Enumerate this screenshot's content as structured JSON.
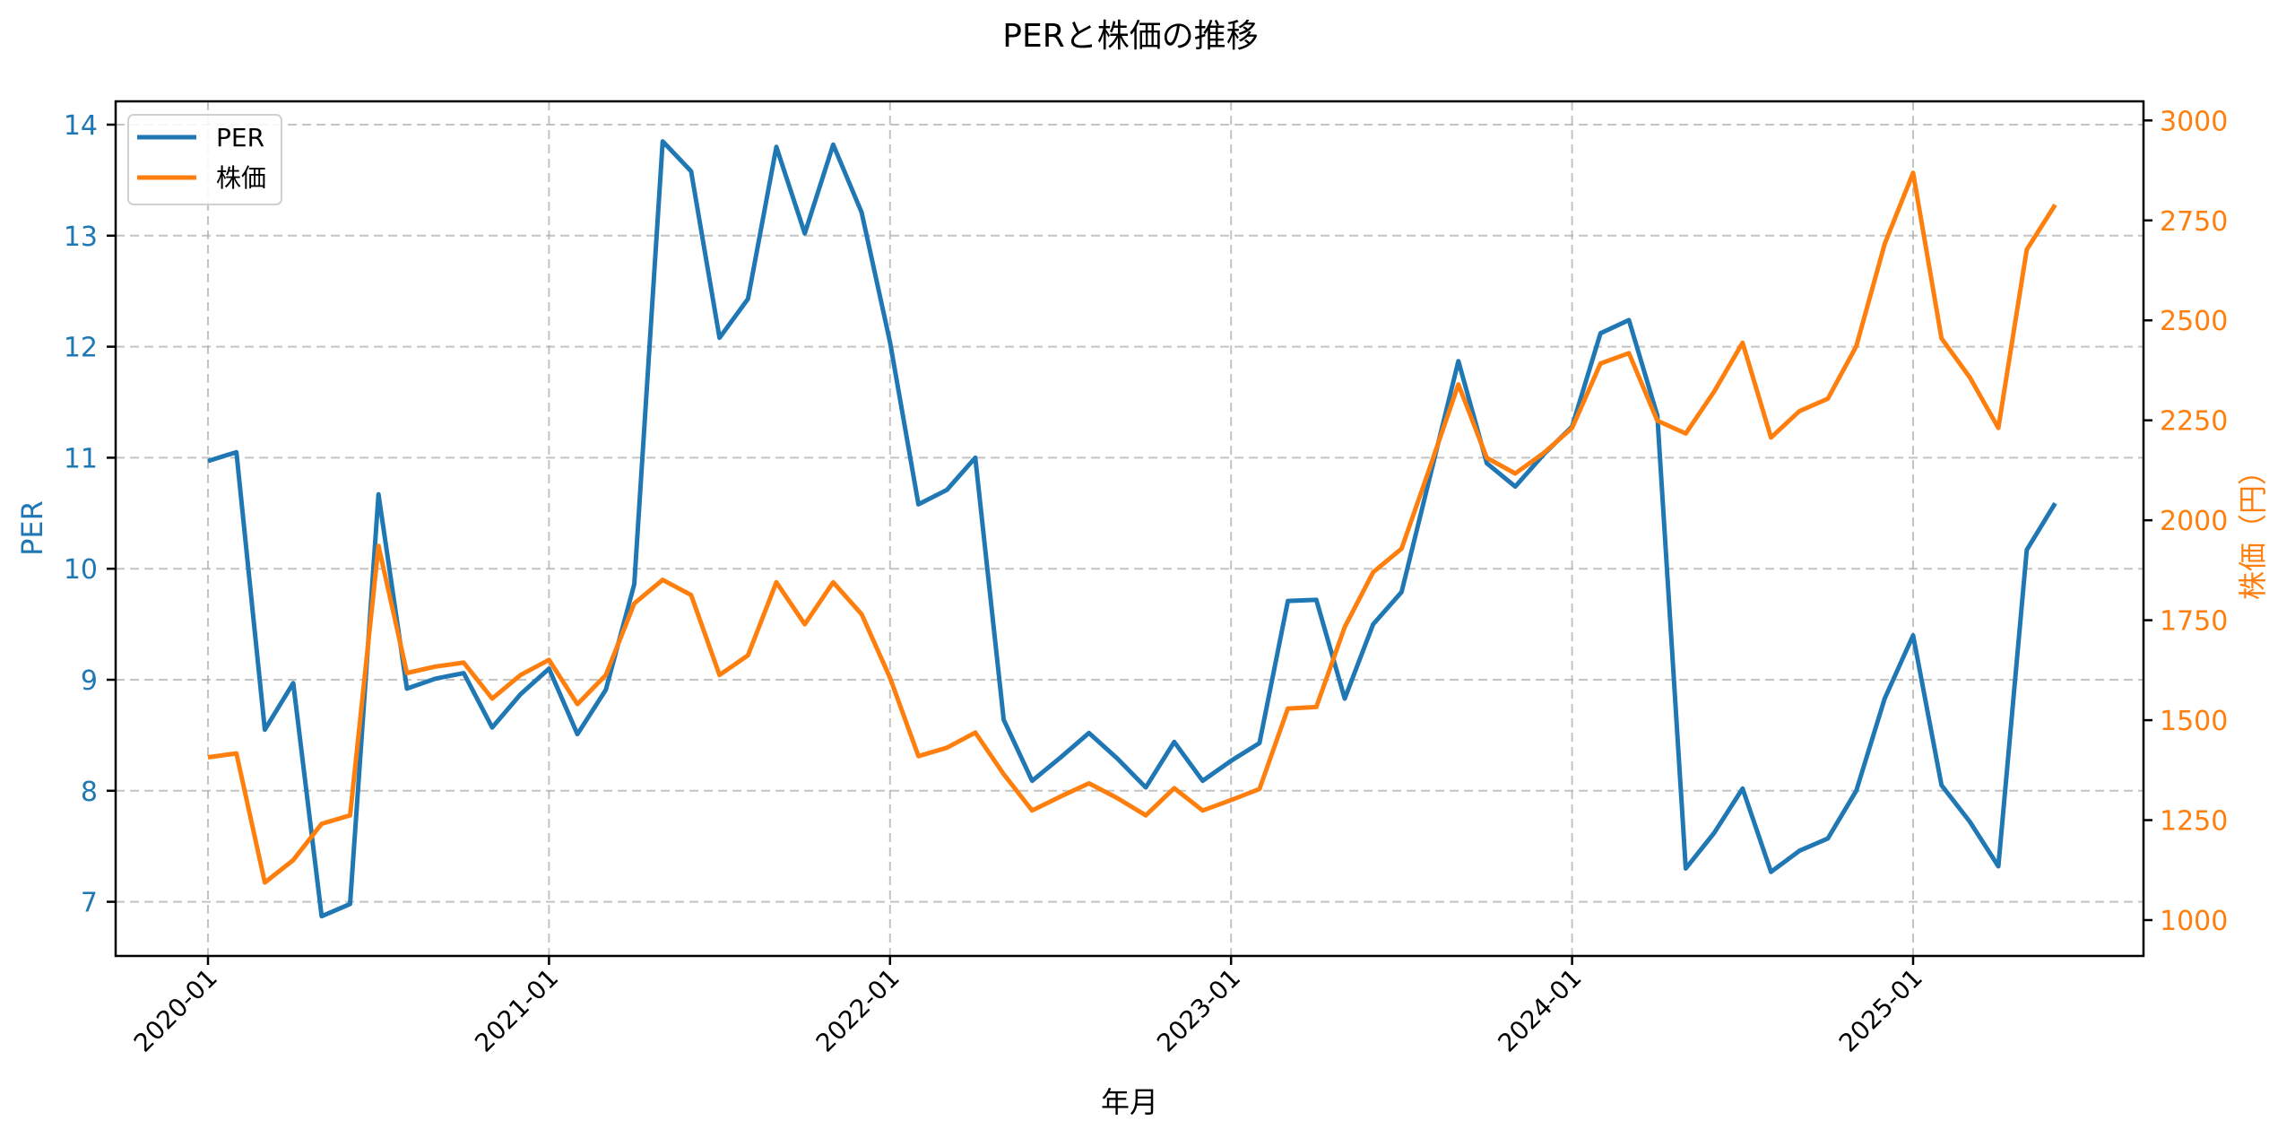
{
  "chart_data": {
    "type": "line",
    "title": "PERと株価の推移",
    "xlabel": "年月",
    "ylabel": "PER",
    "ylabel_right": "株価（円）",
    "x_tick_labels": [
      "2020-01",
      "2021-01",
      "2022-01",
      "2023-01",
      "2024-01",
      "2025-01"
    ],
    "y_ticks_left": [
      7,
      8,
      9,
      10,
      11,
      12,
      13,
      14
    ],
    "y_ticks_right": [
      1000,
      1250,
      1500,
      1750,
      2000,
      2250,
      2500,
      2750,
      3000
    ],
    "ylim_left": [
      6.52,
      14.21
    ],
    "ylim_right": [
      925,
      3050
    ],
    "grid": true,
    "legend_position": "upper left",
    "x": [
      "2020-01",
      "2020-02",
      "2020-03",
      "2020-04",
      "2020-05",
      "2020-06",
      "2020-07",
      "2020-08",
      "2020-09",
      "2020-10",
      "2020-11",
      "2020-12",
      "2021-01",
      "2021-02",
      "2021-03",
      "2021-04",
      "2021-05",
      "2021-06",
      "2021-07",
      "2021-08",
      "2021-09",
      "2021-10",
      "2021-11",
      "2021-12",
      "2022-01",
      "2022-02",
      "2022-03",
      "2022-04",
      "2022-05",
      "2022-06",
      "2022-07",
      "2022-08",
      "2022-09",
      "2022-10",
      "2022-11",
      "2022-12",
      "2023-01",
      "2023-02",
      "2023-03",
      "2023-04",
      "2023-05",
      "2023-06",
      "2023-07",
      "2023-08",
      "2023-09",
      "2023-10",
      "2023-11",
      "2023-12",
      "2024-01",
      "2024-02",
      "2024-03",
      "2024-04",
      "2024-05",
      "2024-06",
      "2024-07",
      "2024-08",
      "2024-09",
      "2024-10",
      "2024-11",
      "2024-12",
      "2025-01",
      "2025-02",
      "2025-03",
      "2025-04",
      "2025-05",
      "2025-06"
    ],
    "series": [
      {
        "name": "PER",
        "axis": "left",
        "color": "#1f77b4",
        "values": [
          10.97,
          11.05,
          8.55,
          8.97,
          6.87,
          6.98,
          10.67,
          8.92,
          9.01,
          9.06,
          8.57,
          8.87,
          9.1,
          8.51,
          8.91,
          9.86,
          13.85,
          13.58,
          12.08,
          12.43,
          13.8,
          13.02,
          13.82,
          13.21,
          12.04,
          10.58,
          10.71,
          11.0,
          8.64,
          8.09,
          8.3,
          8.52,
          8.29,
          8.03,
          8.44,
          8.09,
          8.27,
          8.43,
          9.71,
          9.72,
          8.83,
          9.5,
          9.79,
          10.83,
          11.87,
          10.95,
          10.74,
          11.03,
          11.28,
          12.12,
          12.24,
          11.38,
          7.3,
          7.62,
          8.02,
          7.27,
          7.46,
          7.57,
          8.0,
          8.83,
          9.4,
          8.05,
          7.72,
          7.32,
          10.17,
          10.59
        ]
      },
      {
        "name": "株価",
        "axis": "right",
        "color": "#ff7f0e",
        "values": [
          1407,
          1417,
          1094,
          1150,
          1241,
          1262,
          1936,
          1618,
          1634,
          1644,
          1554,
          1613,
          1651,
          1540,
          1613,
          1792,
          1851,
          1813,
          1613,
          1662,
          1845,
          1740,
          1845,
          1765,
          1606,
          1410,
          1431,
          1469,
          1365,
          1274,
          1309,
          1342,
          1305,
          1262,
          1330,
          1274,
          1300,
          1328,
          1529,
          1533,
          1733,
          1870,
          1929,
          2133,
          2340,
          2156,
          2117,
          2168,
          2231,
          2392,
          2418,
          2249,
          2217,
          2322,
          2444,
          2207,
          2273,
          2304,
          2435,
          2691,
          2869,
          2455,
          2357,
          2231,
          2677,
          2789
        ]
      }
    ]
  },
  "legend": {
    "items": [
      {
        "label": "PER",
        "color": "#1f77b4"
      },
      {
        "label": "株価",
        "color": "#ff7f0e"
      }
    ]
  }
}
